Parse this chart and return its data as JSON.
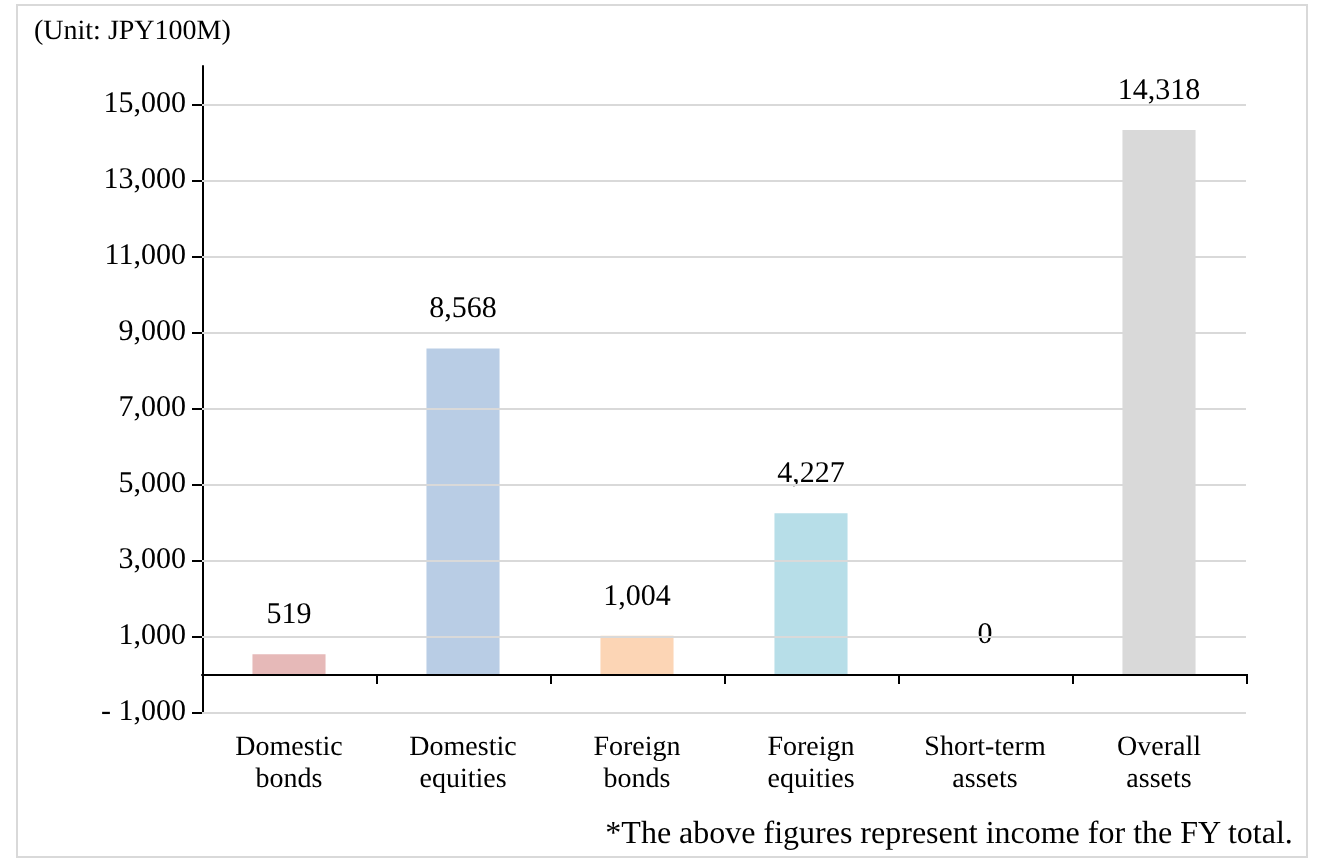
{
  "chart_data": {
    "type": "bar",
    "ylabel": "(Unit: JPY100M)",
    "categories": [
      "Domestic\nbonds",
      "Domestic\nequities",
      "Foreign\nbonds",
      "Foreign\nequities",
      "Short-term\nassets",
      "Overall\nassets"
    ],
    "values": [
      519,
      8568,
      1004,
      4227,
      0,
      14318
    ],
    "colors": [
      "#e6b9b8",
      "#b9cde5",
      "#fcd5b5",
      "#b7dee8",
      "#c0c0c0",
      "#d9d9d9"
    ],
    "ylim": [
      -1000,
      16000
    ],
    "yticks": [
      {
        "value": -1000,
        "label": "- 1,000"
      },
      {
        "value": 1000,
        "label": "1,000"
      },
      {
        "value": 3000,
        "label": "3,000"
      },
      {
        "value": 5000,
        "label": "5,000"
      },
      {
        "value": 7000,
        "label": "7,000"
      },
      {
        "value": 9000,
        "label": "9,000"
      },
      {
        "value": 11000,
        "label": "11,000"
      },
      {
        "value": 13000,
        "label": "13,000"
      },
      {
        "value": 15000,
        "label": "15,000"
      }
    ],
    "grid": "y",
    "value_labels": [
      "519",
      "8,568",
      "1,004",
      "4,227",
      "0",
      "14,318"
    ],
    "annotations": [
      "*The above figures represent income for the FY total."
    ]
  }
}
